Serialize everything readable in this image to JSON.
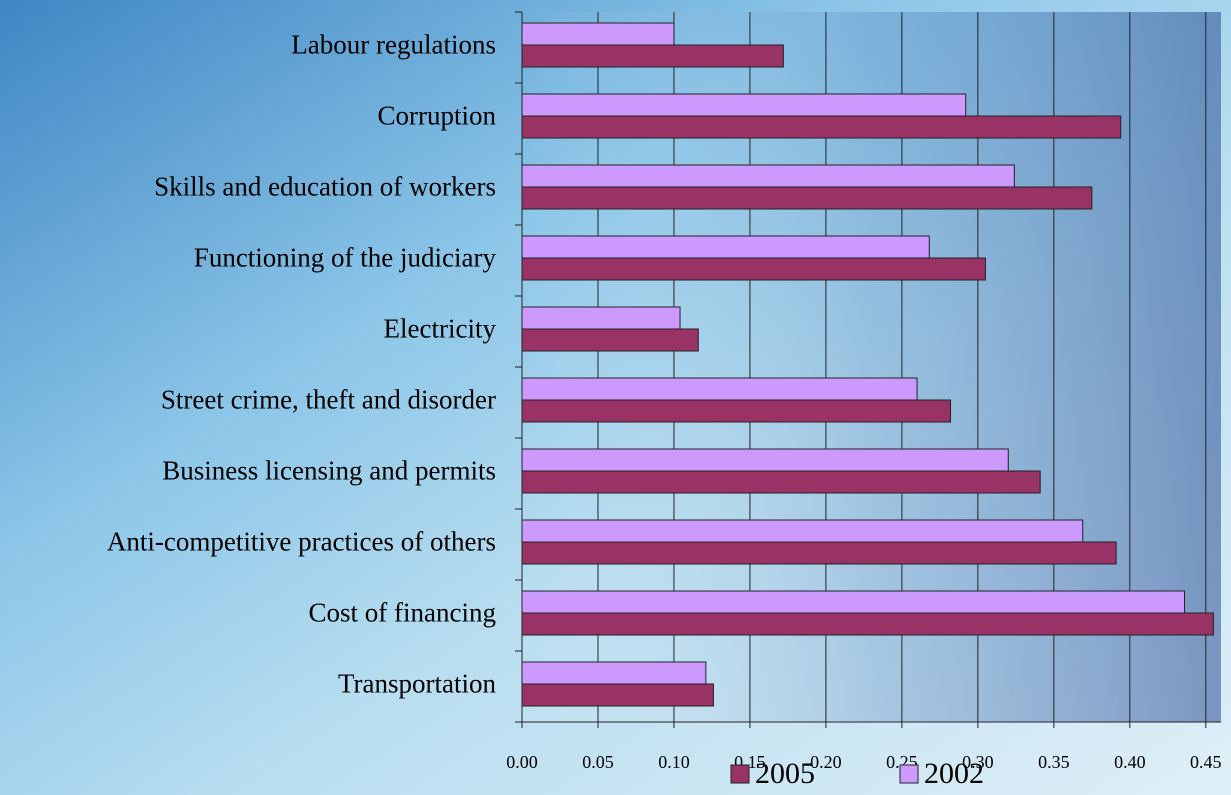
{
  "chart_data": {
    "type": "hbar",
    "categories": [
      "Labour regulations",
      "Corruption",
      "Skills and education of workers",
      "Functioning of the judiciary",
      "Electricity",
      "Street crime, theft and disorder",
      "Business licensing and permits",
      "Anti-competitive practices of others",
      "Cost of financing",
      "Transportation"
    ],
    "series": [
      {
        "name": "2005",
        "color": "#993366",
        "values": [
          0.172,
          0.394,
          0.375,
          0.305,
          0.116,
          0.282,
          0.341,
          0.391,
          0.455,
          0.126
        ]
      },
      {
        "name": "2002",
        "color": "#cc99ff",
        "values": [
          0.1,
          0.292,
          0.324,
          0.268,
          0.104,
          0.26,
          0.32,
          0.369,
          0.436,
          0.121
        ]
      }
    ],
    "xlim": [
      0,
      0.46
    ],
    "xticks": [
      {
        "value": 0,
        "label": "0.00"
      },
      {
        "value": 0.05,
        "label": "0.05"
      },
      {
        "value": 0.1,
        "label": "0.10"
      },
      {
        "value": 0.15,
        "label": "0.15"
      },
      {
        "value": 0.2,
        "label": "0.20"
      },
      {
        "value": 0.25,
        "label": "0.25"
      },
      {
        "value": 0.3,
        "label": "0.30"
      },
      {
        "value": 0.35,
        "label": "0.35"
      },
      {
        "value": 0.4,
        "label": "0.40"
      },
      {
        "value": 0.45,
        "label": "0.45"
      }
    ],
    "grid": true,
    "legend": "bottom"
  }
}
